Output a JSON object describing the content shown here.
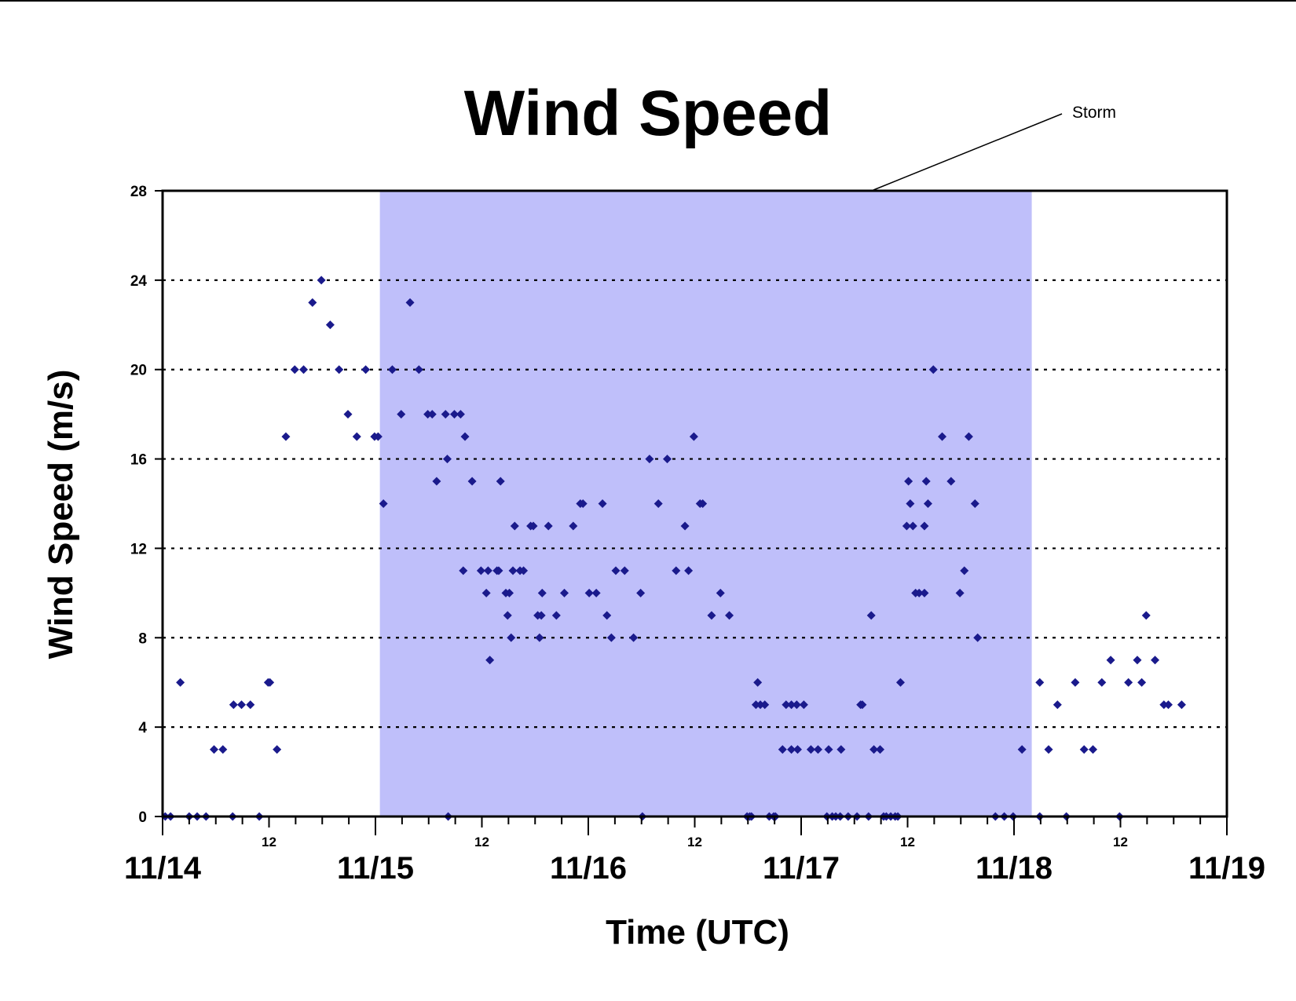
{
  "chart_data": {
    "type": "scatter",
    "title": "Wind Speed",
    "xlabel": "Time (UTC)",
    "ylabel": "Wind Speed (m/s)",
    "ylim": [
      0,
      28
    ],
    "yticks": [
      "0",
      "4",
      "8",
      "12",
      "16",
      "20",
      "24",
      "28"
    ],
    "x_major_ticks": [
      "11/14",
      "11/15",
      "11/16",
      "11/17",
      "11/18",
      "11/19"
    ],
    "x_minor_tick_label": "12",
    "x_unit": "hours since 11/14 00:00 UTC",
    "xlim": [
      0,
      120
    ],
    "grid": "horizontal dotted",
    "marker_color": "#1a1a8c",
    "shade_color": "#bfbffa",
    "shaded_region": {
      "label": "Storm",
      "x_start": 24.5,
      "x_end": 98
    },
    "annotation": "Storm",
    "points": [
      [
        0.3,
        0
      ],
      [
        0.9,
        0
      ],
      [
        2,
        6
      ],
      [
        3,
        0
      ],
      [
        3.9,
        0
      ],
      [
        4.9,
        0
      ],
      [
        5.8,
        3
      ],
      [
        6.8,
        3
      ],
      [
        7.9,
        0
      ],
      [
        8,
        5
      ],
      [
        8.9,
        5
      ],
      [
        9.9,
        5
      ],
      [
        10.9,
        0
      ],
      [
        11.9,
        6
      ],
      [
        12.1,
        6
      ],
      [
        12.9,
        3
      ],
      [
        13.9,
        17
      ],
      [
        14.9,
        20
      ],
      [
        15.9,
        20
      ],
      [
        16.9,
        23
      ],
      [
        17.9,
        24
      ],
      [
        18.9,
        22
      ],
      [
        19.9,
        20
      ],
      [
        20.9,
        18
      ],
      [
        21.9,
        17
      ],
      [
        22.9,
        20
      ],
      [
        23.9,
        17
      ],
      [
        24.3,
        17
      ],
      [
        24.9,
        14
      ],
      [
        25.9,
        20
      ],
      [
        26.9,
        18
      ],
      [
        27.9,
        23
      ],
      [
        28.9,
        20
      ],
      [
        29.9,
        18
      ],
      [
        30.4,
        18
      ],
      [
        30.9,
        15
      ],
      [
        31.9,
        18
      ],
      [
        32.1,
        16
      ],
      [
        32.2,
        0
      ],
      [
        32.9,
        18
      ],
      [
        33.6,
        18
      ],
      [
        33.9,
        11
      ],
      [
        34.1,
        17
      ],
      [
        34.9,
        15
      ],
      [
        35.9,
        11
      ],
      [
        36.5,
        10
      ],
      [
        36.7,
        11
      ],
      [
        36.9,
        7
      ],
      [
        37.7,
        11
      ],
      [
        37.9,
        11
      ],
      [
        38.1,
        15
      ],
      [
        38.7,
        10
      ],
      [
        38.9,
        9
      ],
      [
        39.1,
        10
      ],
      [
        39.3,
        8
      ],
      [
        39.5,
        11
      ],
      [
        39.7,
        13
      ],
      [
        40.3,
        11
      ],
      [
        40.7,
        11
      ],
      [
        41.5,
        13
      ],
      [
        41.8,
        13
      ],
      [
        42.3,
        9
      ],
      [
        42.5,
        8
      ],
      [
        42.7,
        9
      ],
      [
        42.8,
        10
      ],
      [
        43.5,
        13
      ],
      [
        44.4,
        9
      ],
      [
        45.3,
        10
      ],
      [
        46.3,
        13
      ],
      [
        47.1,
        14
      ],
      [
        47.4,
        14
      ],
      [
        48.1,
        10
      ],
      [
        48.9,
        10
      ],
      [
        49.6,
        14
      ],
      [
        50.1,
        9
      ],
      [
        50.6,
        8
      ],
      [
        51.1,
        11
      ],
      [
        52.1,
        11
      ],
      [
        53.1,
        8
      ],
      [
        53.9,
        10
      ],
      [
        54.1,
        0
      ],
      [
        54.9,
        16
      ],
      [
        55.9,
        14
      ],
      [
        56.9,
        16
      ],
      [
        57.9,
        11
      ],
      [
        58.9,
        13
      ],
      [
        59.3,
        11
      ],
      [
        59.9,
        17
      ],
      [
        60.6,
        14
      ],
      [
        60.9,
        14
      ],
      [
        61.9,
        9
      ],
      [
        62.9,
        10
      ],
      [
        63.9,
        9
      ],
      [
        65.9,
        0
      ],
      [
        66.2,
        0
      ],
      [
        66.4,
        0
      ],
      [
        66.9,
        5
      ],
      [
        67.1,
        6
      ],
      [
        67.4,
        5
      ],
      [
        67.9,
        5
      ],
      [
        68.4,
        0
      ],
      [
        68.9,
        0
      ],
      [
        69.1,
        0
      ],
      [
        69.9,
        3
      ],
      [
        70.3,
        5
      ],
      [
        70.9,
        3
      ],
      [
        70.9,
        5
      ],
      [
        71.5,
        5
      ],
      [
        71.6,
        3
      ],
      [
        72.3,
        5
      ],
      [
        73.1,
        3
      ],
      [
        73.9,
        3
      ],
      [
        74.9,
        0
      ],
      [
        75.1,
        3
      ],
      [
        75.5,
        0
      ],
      [
        75.9,
        0
      ],
      [
        76.4,
        0
      ],
      [
        76.5,
        3
      ],
      [
        77.3,
        0
      ],
      [
        78.3,
        0
      ],
      [
        78.7,
        5
      ],
      [
        78.9,
        5
      ],
      [
        79.9,
        9
      ],
      [
        79.6,
        0
      ],
      [
        80.2,
        3
      ],
      [
        80.9,
        3
      ],
      [
        81.3,
        0
      ],
      [
        81.6,
        0
      ],
      [
        82.1,
        0
      ],
      [
        82.6,
        0
      ],
      [
        82.9,
        0
      ],
      [
        83.2,
        6
      ],
      [
        83.9,
        13
      ],
      [
        84.1,
        15
      ],
      [
        84.3,
        14
      ],
      [
        84.6,
        13
      ],
      [
        84.9,
        10
      ],
      [
        85.3,
        10
      ],
      [
        85.9,
        10
      ],
      [
        85.9,
        13
      ],
      [
        86.1,
        15
      ],
      [
        86.3,
        14
      ],
      [
        86.9,
        20
      ],
      [
        87.9,
        17
      ],
      [
        88.9,
        15
      ],
      [
        89.9,
        10
      ],
      [
        90.4,
        11
      ],
      [
        90.9,
        17
      ],
      [
        91.6,
        14
      ],
      [
        91.9,
        8
      ],
      [
        93.9,
        0
      ],
      [
        94.9,
        0
      ],
      [
        95.9,
        0
      ],
      [
        96.9,
        3
      ],
      [
        98.9,
        0
      ],
      [
        98.9,
        6
      ],
      [
        99.9,
        3
      ],
      [
        100.9,
        5
      ],
      [
        101.9,
        0
      ],
      [
        102.9,
        6
      ],
      [
        103.9,
        3
      ],
      [
        104.9,
        3
      ],
      [
        105.9,
        6
      ],
      [
        106.9,
        7
      ],
      [
        107.9,
        0
      ],
      [
        108.9,
        6
      ],
      [
        109.9,
        7
      ],
      [
        110.4,
        6
      ],
      [
        110.9,
        9
      ],
      [
        111.9,
        7
      ],
      [
        112.9,
        5
      ],
      [
        113.4,
        5
      ],
      [
        114.9,
        5
      ]
    ]
  }
}
